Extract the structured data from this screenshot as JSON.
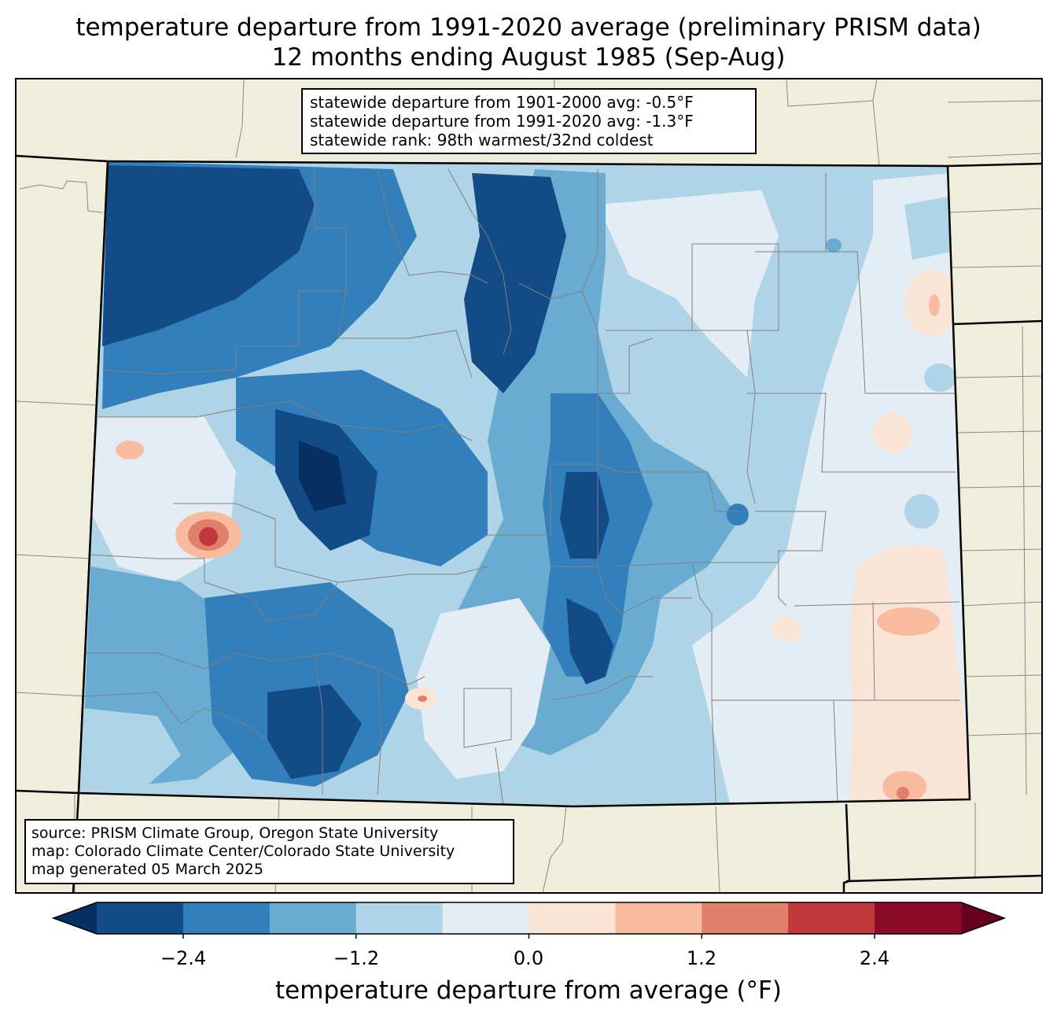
{
  "title": {
    "line1": "temperature departure from 1991-2020 average (preliminary PRISM data)",
    "line2": "12 months ending August 1985 (Sep-Aug)"
  },
  "stats": {
    "line1": "statewide departure from 1901-2000 avg: -0.5°F",
    "line2": "statewide departure from 1991-2020 avg: -1.3°F",
    "line3": "statewide rank: 98th warmest/32nd coldest"
  },
  "source": {
    "line1": "source: PRISM Climate Group, Oregon State University",
    "line2": "map: Colorado Climate Center/Colorado State University",
    "line3": "map generated 05 March 2025"
  },
  "colorbar": {
    "label": "temperature departure from average (°F)",
    "ticks": [
      "−2.4",
      "−1.2",
      "0.0",
      "1.2",
      "2.4"
    ],
    "bins": [
      {
        "min": -3.0,
        "max": -2.4,
        "color": "#134b87"
      },
      {
        "min": -2.4,
        "max": -1.8,
        "color": "#327fbb"
      },
      {
        "min": -1.8,
        "max": -1.2,
        "color": "#6aabd1"
      },
      {
        "min": -1.2,
        "max": -0.6,
        "color": "#afd4e7"
      },
      {
        "min": -0.6,
        "max": 0.0,
        "color": "#e3edf3"
      },
      {
        "min": 0.0,
        "max": 0.6,
        "color": "#fae4d6"
      },
      {
        "min": 0.6,
        "max": 1.2,
        "color": "#f8bba0"
      },
      {
        "min": 1.2,
        "max": 1.8,
        "color": "#e0806a"
      },
      {
        "min": 1.8,
        "max": 2.4,
        "color": "#c0383b"
      },
      {
        "min": 2.4,
        "max": 3.0,
        "color": "#8a0c28"
      }
    ],
    "under_color": "#053061",
    "over_color": "#67001f"
  },
  "colors": {
    "land": "#efeedc",
    "state_border": "#000000",
    "county_border": "#808080"
  }
}
